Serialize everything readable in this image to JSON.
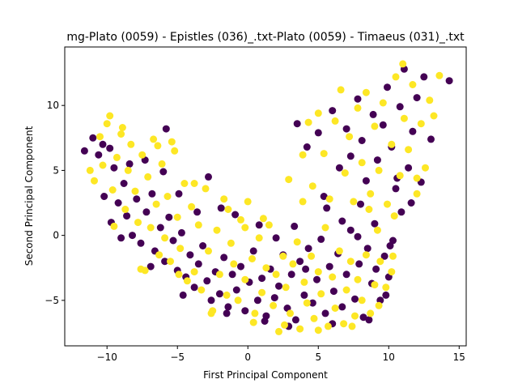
{
  "chart_data": {
    "type": "scatter",
    "title": "mg-Plato (0059) - Epistles (036)_.txt-Plato (0059) - Timaeus (031)_.txt",
    "xlabel": "First Principal Component",
    "ylabel": "Second Principal Component",
    "xlim": [
      -13.0,
      15.5
    ],
    "ylim": [
      -8.5,
      14.5
    ],
    "xticks": [
      -10,
      -5,
      0,
      5,
      10,
      15
    ],
    "yticks": [
      -5,
      0,
      5,
      10
    ],
    "xtick_labels": [
      "−10",
      "−5",
      "0",
      "5",
      "10",
      "15"
    ],
    "ytick_labels": [
      "−5",
      "0",
      "5",
      "10"
    ],
    "grid": false,
    "legend": "none",
    "colors": {
      "class_0": "#440154",
      "class_1": "#fde725"
    },
    "series": [
      {
        "color_key": "class_0",
        "points": [
          [
            -11.6,
            6.5
          ],
          [
            -11.0,
            7.5
          ],
          [
            -10.6,
            6.2
          ],
          [
            -10.3,
            7.0
          ],
          [
            -9.8,
            6.7
          ],
          [
            -9.5,
            5.2
          ],
          [
            -10.2,
            3.0
          ],
          [
            -9.7,
            1.0
          ],
          [
            -9.2,
            2.5
          ],
          [
            -8.8,
            4.0
          ],
          [
            -8.6,
            1.5
          ],
          [
            -8.2,
            0.0
          ],
          [
            -7.9,
            2.8
          ],
          [
            -7.6,
            -0.6
          ],
          [
            -7.2,
            1.8
          ],
          [
            -6.8,
            3.2
          ],
          [
            -6.6,
            -1.2
          ],
          [
            -6.2,
            0.6
          ],
          [
            -5.9,
            -2.0
          ],
          [
            -5.6,
            1.4
          ],
          [
            -5.8,
            8.2
          ],
          [
            -5.3,
            -0.4
          ],
          [
            -5.0,
            -2.7
          ],
          [
            -4.7,
            0.2
          ],
          [
            -4.4,
            -3.2
          ],
          [
            -4.1,
            -1.5
          ],
          [
            -3.8,
            -4.0
          ],
          [
            -3.5,
            -2.2
          ],
          [
            -3.2,
            -0.8
          ],
          [
            -2.9,
            -3.5
          ],
          [
            -2.6,
            -5.0
          ],
          [
            -2.3,
            -2.8
          ],
          [
            -2.0,
            -4.5
          ],
          [
            -1.7,
            -1.7
          ],
          [
            -1.4,
            -5.5
          ],
          [
            -1.1,
            -3.0
          ],
          [
            -0.8,
            -4.2
          ],
          [
            -0.5,
            -2.4
          ],
          [
            -0.2,
            -5.8
          ],
          [
            0.1,
            -3.6
          ],
          [
            0.4,
            -1.2
          ],
          [
            0.7,
            -5.0
          ],
          [
            1.0,
            -3.3
          ],
          [
            1.3,
            -6.2
          ],
          [
            1.6,
            -2.6
          ],
          [
            1.9,
            -4.8
          ],
          [
            2.2,
            -3.9
          ],
          [
            2.5,
            -1.5
          ],
          [
            2.8,
            -5.6
          ],
          [
            3.1,
            -3.0
          ],
          [
            3.4,
            -6.5
          ],
          [
            3.7,
            -2.0
          ],
          [
            4.0,
            -4.6
          ],
          [
            4.3,
            -1.0
          ],
          [
            4.6,
            -5.2
          ],
          [
            4.9,
            -3.4
          ],
          [
            5.2,
            -0.3
          ],
          [
            5.5,
            -6.0
          ],
          [
            5.8,
            -2.4
          ],
          [
            6.1,
            -4.3
          ],
          [
            6.4,
            -1.4
          ],
          [
            6.7,
            -5.5
          ],
          [
            7.0,
            -3.0
          ],
          [
            7.3,
            0.4
          ],
          [
            7.6,
            -4.9
          ],
          [
            7.9,
            -2.2
          ],
          [
            8.2,
            -6.3
          ],
          [
            8.5,
            -1.0
          ],
          [
            8.8,
            -3.7
          ],
          [
            9.1,
            -2.6
          ],
          [
            9.4,
            -5.0
          ],
          [
            9.7,
            -1.6
          ],
          [
            10.0,
            -3.2
          ],
          [
            10.3,
            -0.4
          ],
          [
            3.5,
            8.6
          ],
          [
            4.2,
            6.8
          ],
          [
            5.0,
            7.9
          ],
          [
            5.4,
            3.0
          ],
          [
            6.0,
            9.6
          ],
          [
            6.5,
            5.2
          ],
          [
            7.0,
            8.2
          ],
          [
            7.3,
            6.1
          ],
          [
            7.8,
            10.5
          ],
          [
            8.1,
            7.3
          ],
          [
            8.4,
            4.2
          ],
          [
            8.9,
            9.3
          ],
          [
            9.2,
            5.8
          ],
          [
            9.6,
            8.5
          ],
          [
            9.9,
            11.4
          ],
          [
            10.2,
            6.8
          ],
          [
            10.5,
            3.6
          ],
          [
            10.8,
            9.9
          ],
          [
            11.1,
            12.8
          ],
          [
            11.4,
            5.2
          ],
          [
            11.7,
            8.0
          ],
          [
            12.0,
            10.6
          ],
          [
            12.5,
            12.2
          ],
          [
            13.0,
            7.4
          ],
          [
            14.3,
            11.9
          ],
          [
            10.9,
            1.8
          ],
          [
            10.1,
            -0.8
          ],
          [
            9.0,
            0.9
          ],
          [
            8.0,
            2.4
          ],
          [
            6.7,
            1.1
          ],
          [
            5.6,
            2.1
          ],
          [
            -9.0,
            -0.2
          ],
          [
            -8.4,
            5.5
          ],
          [
            -7.3,
            5.8
          ],
          [
            -6.0,
            4.9
          ],
          [
            -4.9,
            3.2
          ],
          [
            -2.8,
            4.5
          ],
          [
            -1.9,
            2.1
          ],
          [
            -0.9,
            1.6
          ],
          [
            0.8,
            0.8
          ],
          [
            2.0,
            -0.2
          ],
          [
            3.3,
            0.7
          ],
          [
            4.1,
            -2.6
          ],
          [
            -3.6,
            1.8
          ],
          [
            -6.9,
            -2.4
          ],
          [
            -4.6,
            -4.6
          ],
          [
            -1.5,
            -6.0
          ],
          [
            1.2,
            -6.6
          ],
          [
            2.9,
            -7.0
          ],
          [
            6.0,
            -6.8
          ],
          [
            8.6,
            -6.5
          ],
          [
            9.8,
            -4.6
          ],
          [
            7.8,
            -0.1
          ],
          [
            10.6,
            4.4
          ],
          [
            12.3,
            4.1
          ],
          [
            11.6,
            2.5
          ]
        ]
      },
      {
        "color_key": "class_1",
        "points": [
          [
            -11.2,
            5.0
          ],
          [
            -10.9,
            4.2
          ],
          [
            -10.5,
            7.6
          ],
          [
            -10.0,
            8.6
          ],
          [
            -9.8,
            9.2
          ],
          [
            -9.6,
            3.5
          ],
          [
            -9.3,
            6.0
          ],
          [
            -9.0,
            7.8
          ],
          [
            -8.7,
            2.0
          ],
          [
            -8.5,
            5.0
          ],
          [
            -8.3,
            7.0
          ],
          [
            -8.0,
            3.4
          ],
          [
            -7.8,
            1.0
          ],
          [
            -7.5,
            6.2
          ],
          [
            -7.3,
            -2.7
          ],
          [
            -7.1,
            4.5
          ],
          [
            -6.9,
            0.6
          ],
          [
            -6.7,
            7.4
          ],
          [
            -6.5,
            2.4
          ],
          [
            -6.3,
            -1.5
          ],
          [
            -6.1,
            5.5
          ],
          [
            -5.9,
            -0.2
          ],
          [
            -5.7,
            3.0
          ],
          [
            -5.5,
            -2.0
          ],
          [
            -5.2,
            6.5
          ],
          [
            -5.0,
            1.4
          ],
          [
            -4.8,
            -1.0
          ],
          [
            -4.5,
            4.0
          ],
          [
            -4.3,
            -3.5
          ],
          [
            -4.0,
            2.2
          ],
          [
            -3.8,
            -2.8
          ],
          [
            -3.5,
            0.8
          ],
          [
            -3.3,
            -4.2
          ],
          [
            -3.0,
            3.6
          ],
          [
            -2.8,
            -1.2
          ],
          [
            -2.5,
            -5.8
          ],
          [
            -2.2,
            0.4
          ],
          [
            -2.0,
            -3.0
          ],
          [
            -1.7,
            2.8
          ],
          [
            -1.5,
            -4.6
          ],
          [
            -1.2,
            -0.6
          ],
          [
            -1.0,
            -2.2
          ],
          [
            -0.7,
            -5.0
          ],
          [
            -0.5,
            1.2
          ],
          [
            -0.2,
            -3.4
          ],
          [
            0.0,
            2.6
          ],
          [
            0.3,
            -1.8
          ],
          [
            0.5,
            -6.0
          ],
          [
            0.8,
            -0.2
          ],
          [
            1.0,
            -4.4
          ],
          [
            1.3,
            -2.5
          ],
          [
            1.5,
            0.8
          ],
          [
            1.8,
            -5.4
          ],
          [
            2.0,
            -3.0
          ],
          [
            2.2,
            -7.4
          ],
          [
            2.5,
            -1.6
          ],
          [
            2.7,
            -4.0
          ],
          [
            3.0,
            -6.0
          ],
          [
            3.2,
            -2.2
          ],
          [
            3.5,
            -0.5
          ],
          [
            3.7,
            -7.2
          ],
          [
            4.0,
            -3.6
          ],
          [
            4.2,
            -5.2
          ],
          [
            4.5,
            -1.6
          ],
          [
            4.7,
            -6.4
          ],
          [
            5.0,
            -2.8
          ],
          [
            5.2,
            -4.5
          ],
          [
            5.5,
            0.6
          ],
          [
            5.7,
            -7.0
          ],
          [
            6.0,
            -3.2
          ],
          [
            6.2,
            -5.6
          ],
          [
            6.5,
            -1.2
          ],
          [
            6.8,
            -6.8
          ],
          [
            7.0,
            -4.2
          ],
          [
            7.3,
            -2.0
          ],
          [
            7.6,
            -6.2
          ],
          [
            7.8,
            -3.4
          ],
          [
            8.1,
            -5.0
          ],
          [
            8.4,
            -1.5
          ],
          [
            8.7,
            -6.0
          ],
          [
            9.0,
            -3.8
          ],
          [
            9.4,
            -2.0
          ],
          [
            9.8,
            -4.0
          ],
          [
            10.2,
            -2.8
          ],
          [
            3.9,
            6.2
          ],
          [
            4.3,
            8.7
          ],
          [
            4.6,
            3.8
          ],
          [
            5.0,
            9.4
          ],
          [
            5.4,
            6.3
          ],
          [
            5.8,
            2.8
          ],
          [
            6.2,
            8.8
          ],
          [
            6.6,
            11.2
          ],
          [
            6.9,
            4.8
          ],
          [
            7.2,
            7.6
          ],
          [
            7.5,
            2.6
          ],
          [
            7.8,
            9.8
          ],
          [
            8.1,
            5.6
          ],
          [
            8.4,
            11.0
          ],
          [
            8.7,
            3.2
          ],
          [
            9.0,
            8.4
          ],
          [
            9.3,
            5.0
          ],
          [
            9.6,
            10.2
          ],
          [
            9.9,
            2.4
          ],
          [
            10.2,
            7.0
          ],
          [
            10.5,
            12.2
          ],
          [
            10.8,
            4.6
          ],
          [
            11.1,
            9.0
          ],
          [
            11.4,
            6.6
          ],
          [
            11.7,
            11.6
          ],
          [
            12.0,
            3.2
          ],
          [
            12.3,
            8.6
          ],
          [
            12.6,
            5.2
          ],
          [
            12.9,
            10.4
          ],
          [
            13.2,
            9.2
          ],
          [
            13.6,
            12.3
          ],
          [
            12.0,
            4.4
          ],
          [
            11.0,
            13.2
          ],
          [
            10.4,
            1.5
          ],
          [
            9.2,
            0.4
          ],
          [
            8.6,
            2.0
          ],
          [
            2.9,
            4.3
          ],
          [
            3.9,
            2.6
          ],
          [
            1.1,
            1.3
          ],
          [
            -0.2,
            0.6
          ],
          [
            -1.4,
            2.0
          ],
          [
            -3.8,
            4.0
          ],
          [
            -6.4,
            6.9
          ],
          [
            -8.9,
            8.3
          ],
          [
            -10.3,
            5.4
          ],
          [
            -7.6,
            -2.6
          ],
          [
            -4.9,
            -3.0
          ],
          [
            -2.6,
            -6.0
          ],
          [
            0.4,
            -6.7
          ],
          [
            2.6,
            -6.9
          ],
          [
            5.0,
            -7.3
          ],
          [
            7.4,
            -7.0
          ],
          [
            9.3,
            -5.4
          ],
          [
            10.3,
            -1.6
          ],
          [
            -9.5,
            0.7
          ],
          [
            -5.4,
            7.2
          ]
        ]
      }
    ]
  }
}
